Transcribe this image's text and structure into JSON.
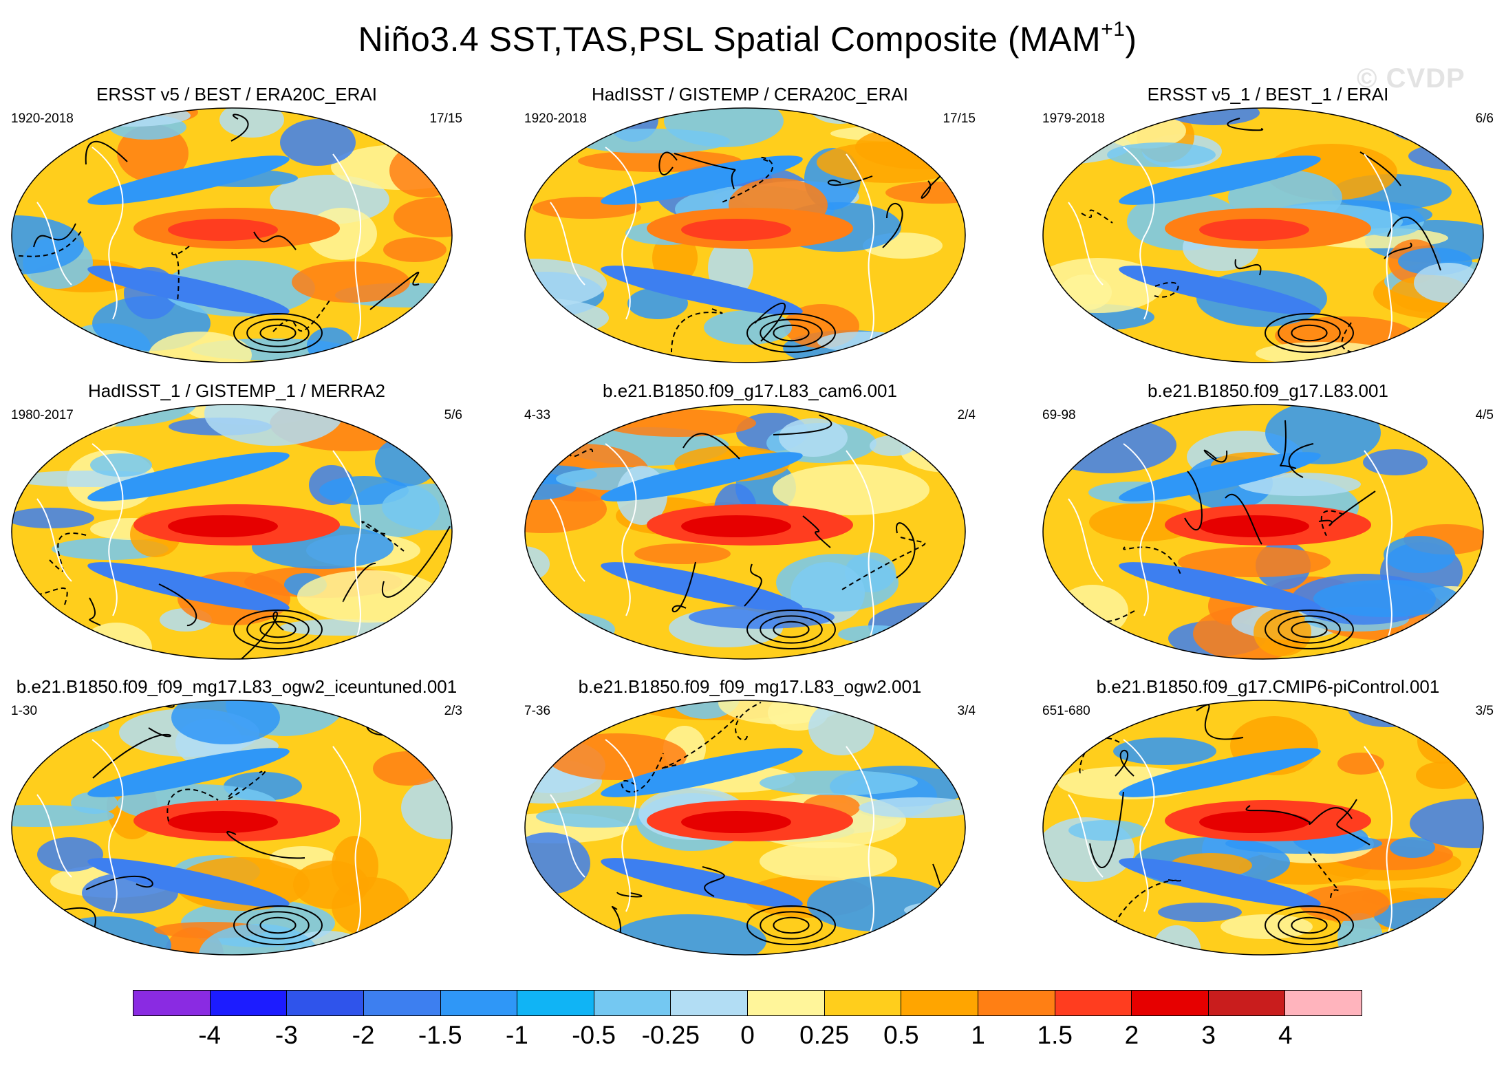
{
  "figure": {
    "title_main": "Niño3.4 SST,TAS,PSL Spatial Composite (MAM",
    "title_sup": "+1",
    "title_close": ")",
    "watermark": "© CVDP"
  },
  "panels": [
    {
      "title": "ERSST v5 / BEST / ERA20C_ERAI",
      "period": "1920-2018",
      "count": "17/15"
    },
    {
      "title": "HadISST / GISTEMP / CERA20C_ERAI",
      "period": "1920-2018",
      "count": "17/15"
    },
    {
      "title": "ERSST v5_1 / BEST_1 / ERAI",
      "period": "1979-2018",
      "count": "6/6"
    },
    {
      "title": "HadISST_1 / GISTEMP_1 / MERRA2",
      "period": "1980-2017",
      "count": "5/6"
    },
    {
      "title": "b.e21.B1850.f09_g17.L83_cam6.001",
      "period": "4-33",
      "count": "2/4"
    },
    {
      "title": "b.e21.B1850.f09_g17.L83.001",
      "period": "69-98",
      "count": "4/5"
    },
    {
      "title": "b.e21.B1850.f09_f09_mg17.L83_ogw2_iceuntuned.001",
      "period": "1-30",
      "count": "2/3"
    },
    {
      "title": "b.e21.B1850.f09_f09_mg17.L83_ogw2.001",
      "period": "7-36",
      "count": "3/4"
    },
    {
      "title": "b.e21.B1850.f09_g17.CMIP6-piControl.001",
      "period": "651-680",
      "count": "3/5"
    }
  ],
  "colorbar": {
    "colors": [
      "#8a2be2",
      "#1c1cff",
      "#2f54eb",
      "#3d7ff0",
      "#2f97f7",
      "#10b4f5",
      "#74c8f2",
      "#b2ddf4",
      "#fff59a",
      "#ffce1c",
      "#ffa500",
      "#ff7f14",
      "#ff3d1f",
      "#e60000",
      "#c91d1d",
      "#ffb4bd"
    ],
    "labels": [
      "-4",
      "-3",
      "-2",
      "-1.5",
      "-1",
      "-0.5",
      "-0.25",
      "0",
      "0.25",
      "0.5",
      "1",
      "1.5",
      "2",
      "3",
      "4"
    ]
  }
}
